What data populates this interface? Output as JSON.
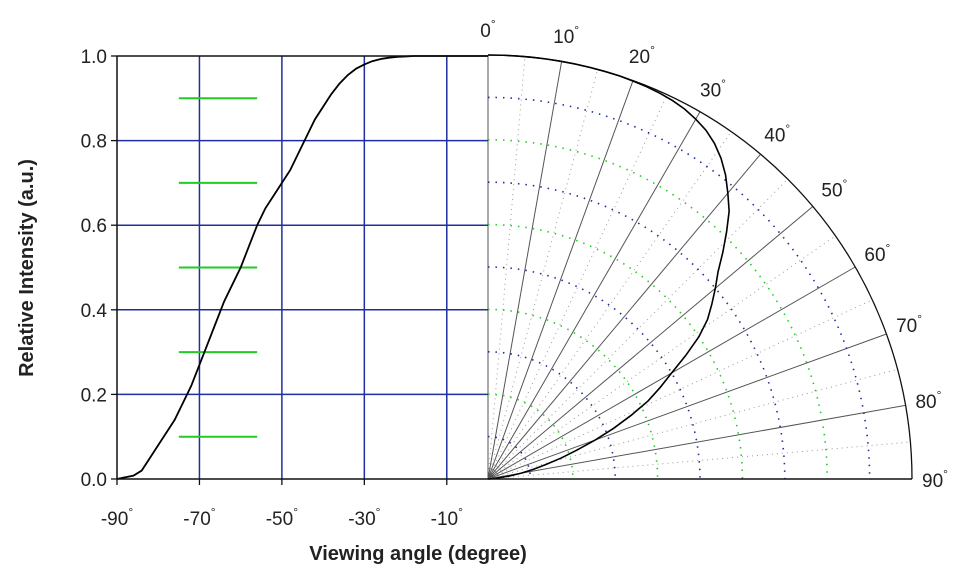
{
  "chart_data": {
    "type": "line",
    "xlabel": "Viewing angle (degree)",
    "ylabel": "Relative Intensity (a.u.)",
    "ylim": [
      0,
      1.0
    ],
    "xlim": [
      -90,
      0
    ],
    "y_ticks": [
      "0.0",
      "0.2",
      "0.4",
      "0.6",
      "0.8",
      "1.0"
    ],
    "x_ticks": [
      {
        "value": -90,
        "label": "-90°"
      },
      {
        "value": -70,
        "label": "-70°"
      },
      {
        "value": -50,
        "label": "-50°"
      },
      {
        "value": -30,
        "label": "-30°"
      },
      {
        "value": -10,
        "label": "-10°"
      }
    ],
    "polar_ticks": [
      "0°",
      "10°",
      "20°",
      "30°",
      "40°",
      "50°",
      "60°",
      "70°",
      "80°",
      "90°"
    ],
    "grid": true,
    "grid_color": "#1f2fa0",
    "curve_color": "#000000",
    "dash_color": "#22cc22",
    "series": [
      {
        "x": [
          -90,
          -88,
          -86,
          -84,
          -82,
          -80,
          -78,
          -76,
          -74,
          -72,
          -70,
          -68,
          -66,
          -64,
          -62,
          -60,
          -58,
          -56,
          -54,
          -52,
          -50,
          -48,
          -46,
          -44,
          -42,
          -40,
          -38,
          -36,
          -34,
          -32,
          -30,
          -28,
          -26,
          -24,
          -22,
          -20,
          -18,
          -16,
          -14,
          -12,
          -10,
          -8,
          -6,
          -4,
          -2,
          0
        ],
        "y": [
          0.0,
          0.004,
          0.008,
          0.02,
          0.05,
          0.08,
          0.11,
          0.14,
          0.18,
          0.22,
          0.27,
          0.32,
          0.37,
          0.42,
          0.46,
          0.5,
          0.55,
          0.6,
          0.64,
          0.67,
          0.7,
          0.73,
          0.77,
          0.81,
          0.85,
          0.88,
          0.91,
          0.935,
          0.955,
          0.97,
          0.98,
          0.988,
          0.993,
          0.996,
          0.998,
          0.999,
          1.0,
          1.0,
          1.0,
          1.0,
          1.0,
          1.0,
          1.0,
          1.0,
          1.0,
          1.0
        ]
      }
    ]
  }
}
